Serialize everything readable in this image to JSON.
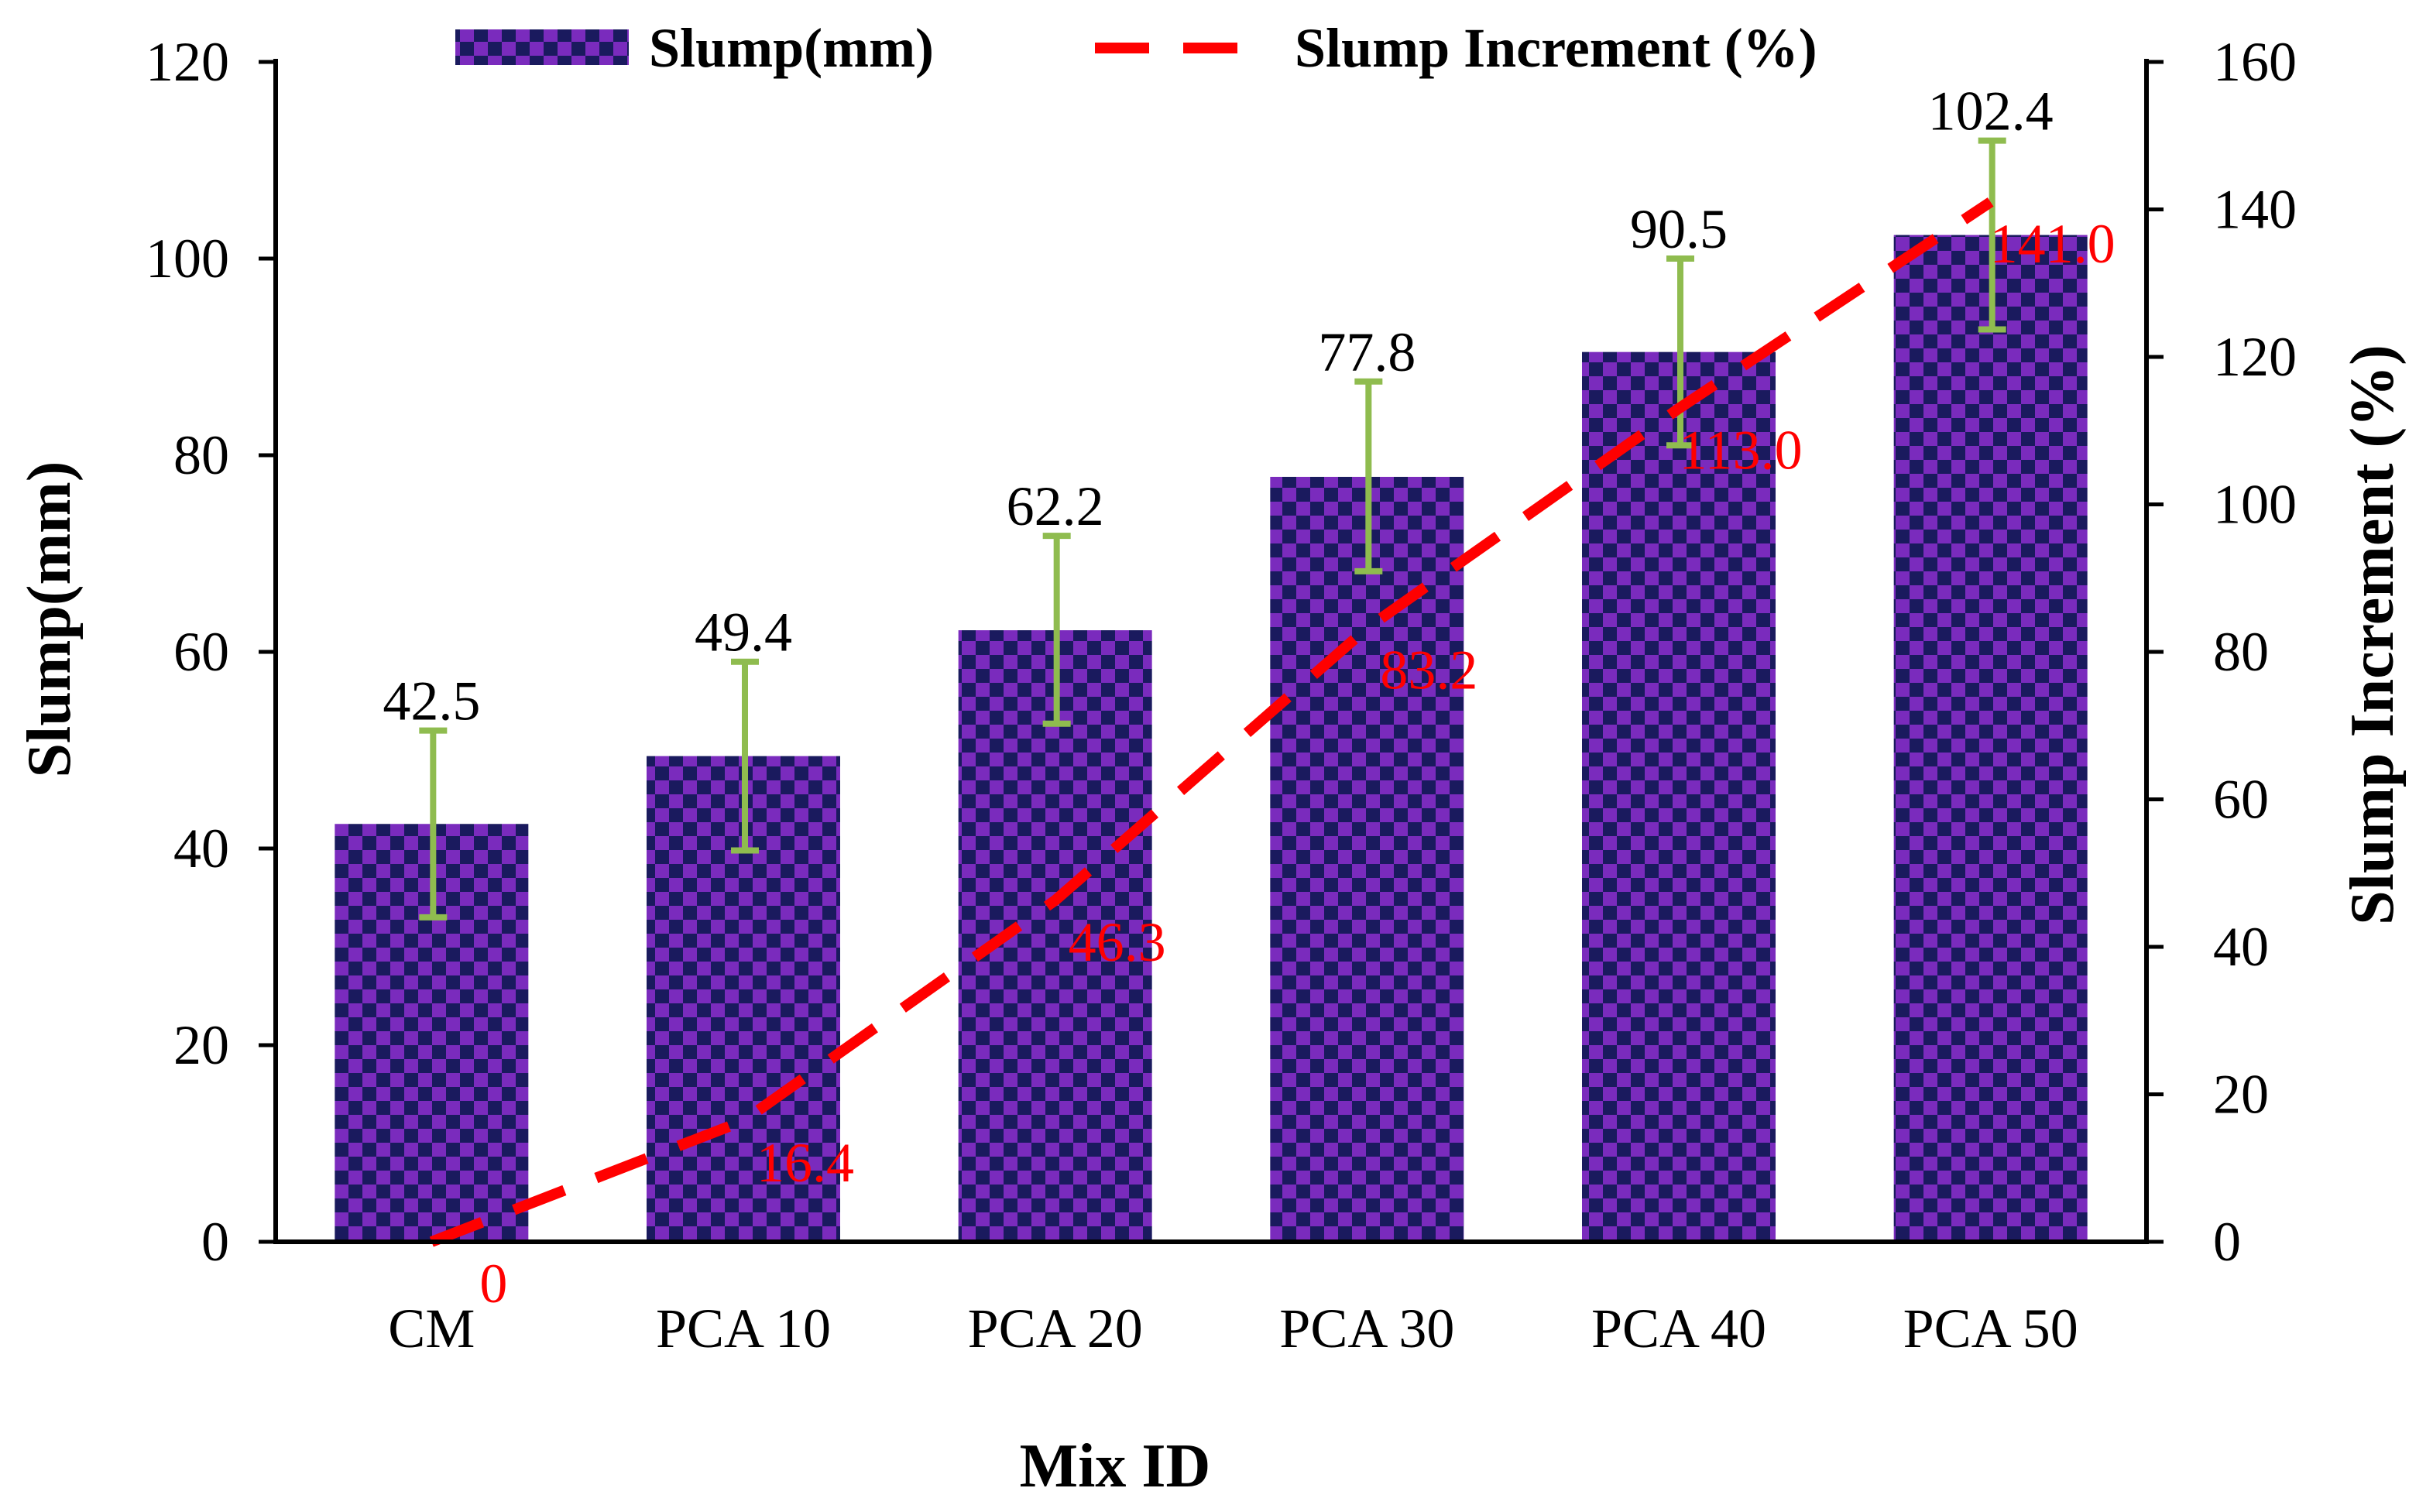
{
  "chart_data": {
    "type": "bar",
    "categories": [
      "CM",
      "PCA 10",
      "PCA 20",
      "PCA 30",
      "PCA 40",
      "PCA 50"
    ],
    "xlabel": "Mix ID",
    "ylabel": "Slump(mm)",
    "y2label": "Slump Increment (%)",
    "ylim": [
      0,
      120
    ],
    "y2lim": [
      0,
      160
    ],
    "yticks": [
      "0",
      "20",
      "40",
      "60",
      "80",
      "100",
      "120"
    ],
    "y2ticks": [
      "0",
      "20",
      "40",
      "60",
      "80",
      "100",
      "120",
      "140",
      "160"
    ],
    "grid": false,
    "legend_position": "top",
    "series": [
      {
        "name": "Slump(mm)",
        "type": "bar",
        "axis": "left",
        "values": [
          42.5,
          49.4,
          62.2,
          77.8,
          90.5,
          102.4
        ],
        "labels": [
          "42.5",
          "49.4",
          "62.2",
          "77.8",
          "90.5",
          "102.4"
        ],
        "error_low": [
          33.0,
          39.8,
          52.7,
          68.2,
          81.0,
          92.8
        ],
        "error_high": [
          52.0,
          59.0,
          71.8,
          87.5,
          100.0,
          112.0
        ],
        "pattern": "checkerboard",
        "colors": [
          "#7a2bbd",
          "#1a1a5e"
        ],
        "error_color": "#8fbc4f"
      },
      {
        "name": "Slump Increment (%)",
        "type": "line",
        "axis": "right",
        "style": "dashed",
        "color": "#ff0000",
        "values": [
          0,
          16.4,
          46.3,
          83.2,
          113.0,
          141.0
        ],
        "labels": [
          "0",
          "16.4",
          "46.3",
          "83.2",
          "113.0",
          "141.0"
        ]
      }
    ]
  }
}
